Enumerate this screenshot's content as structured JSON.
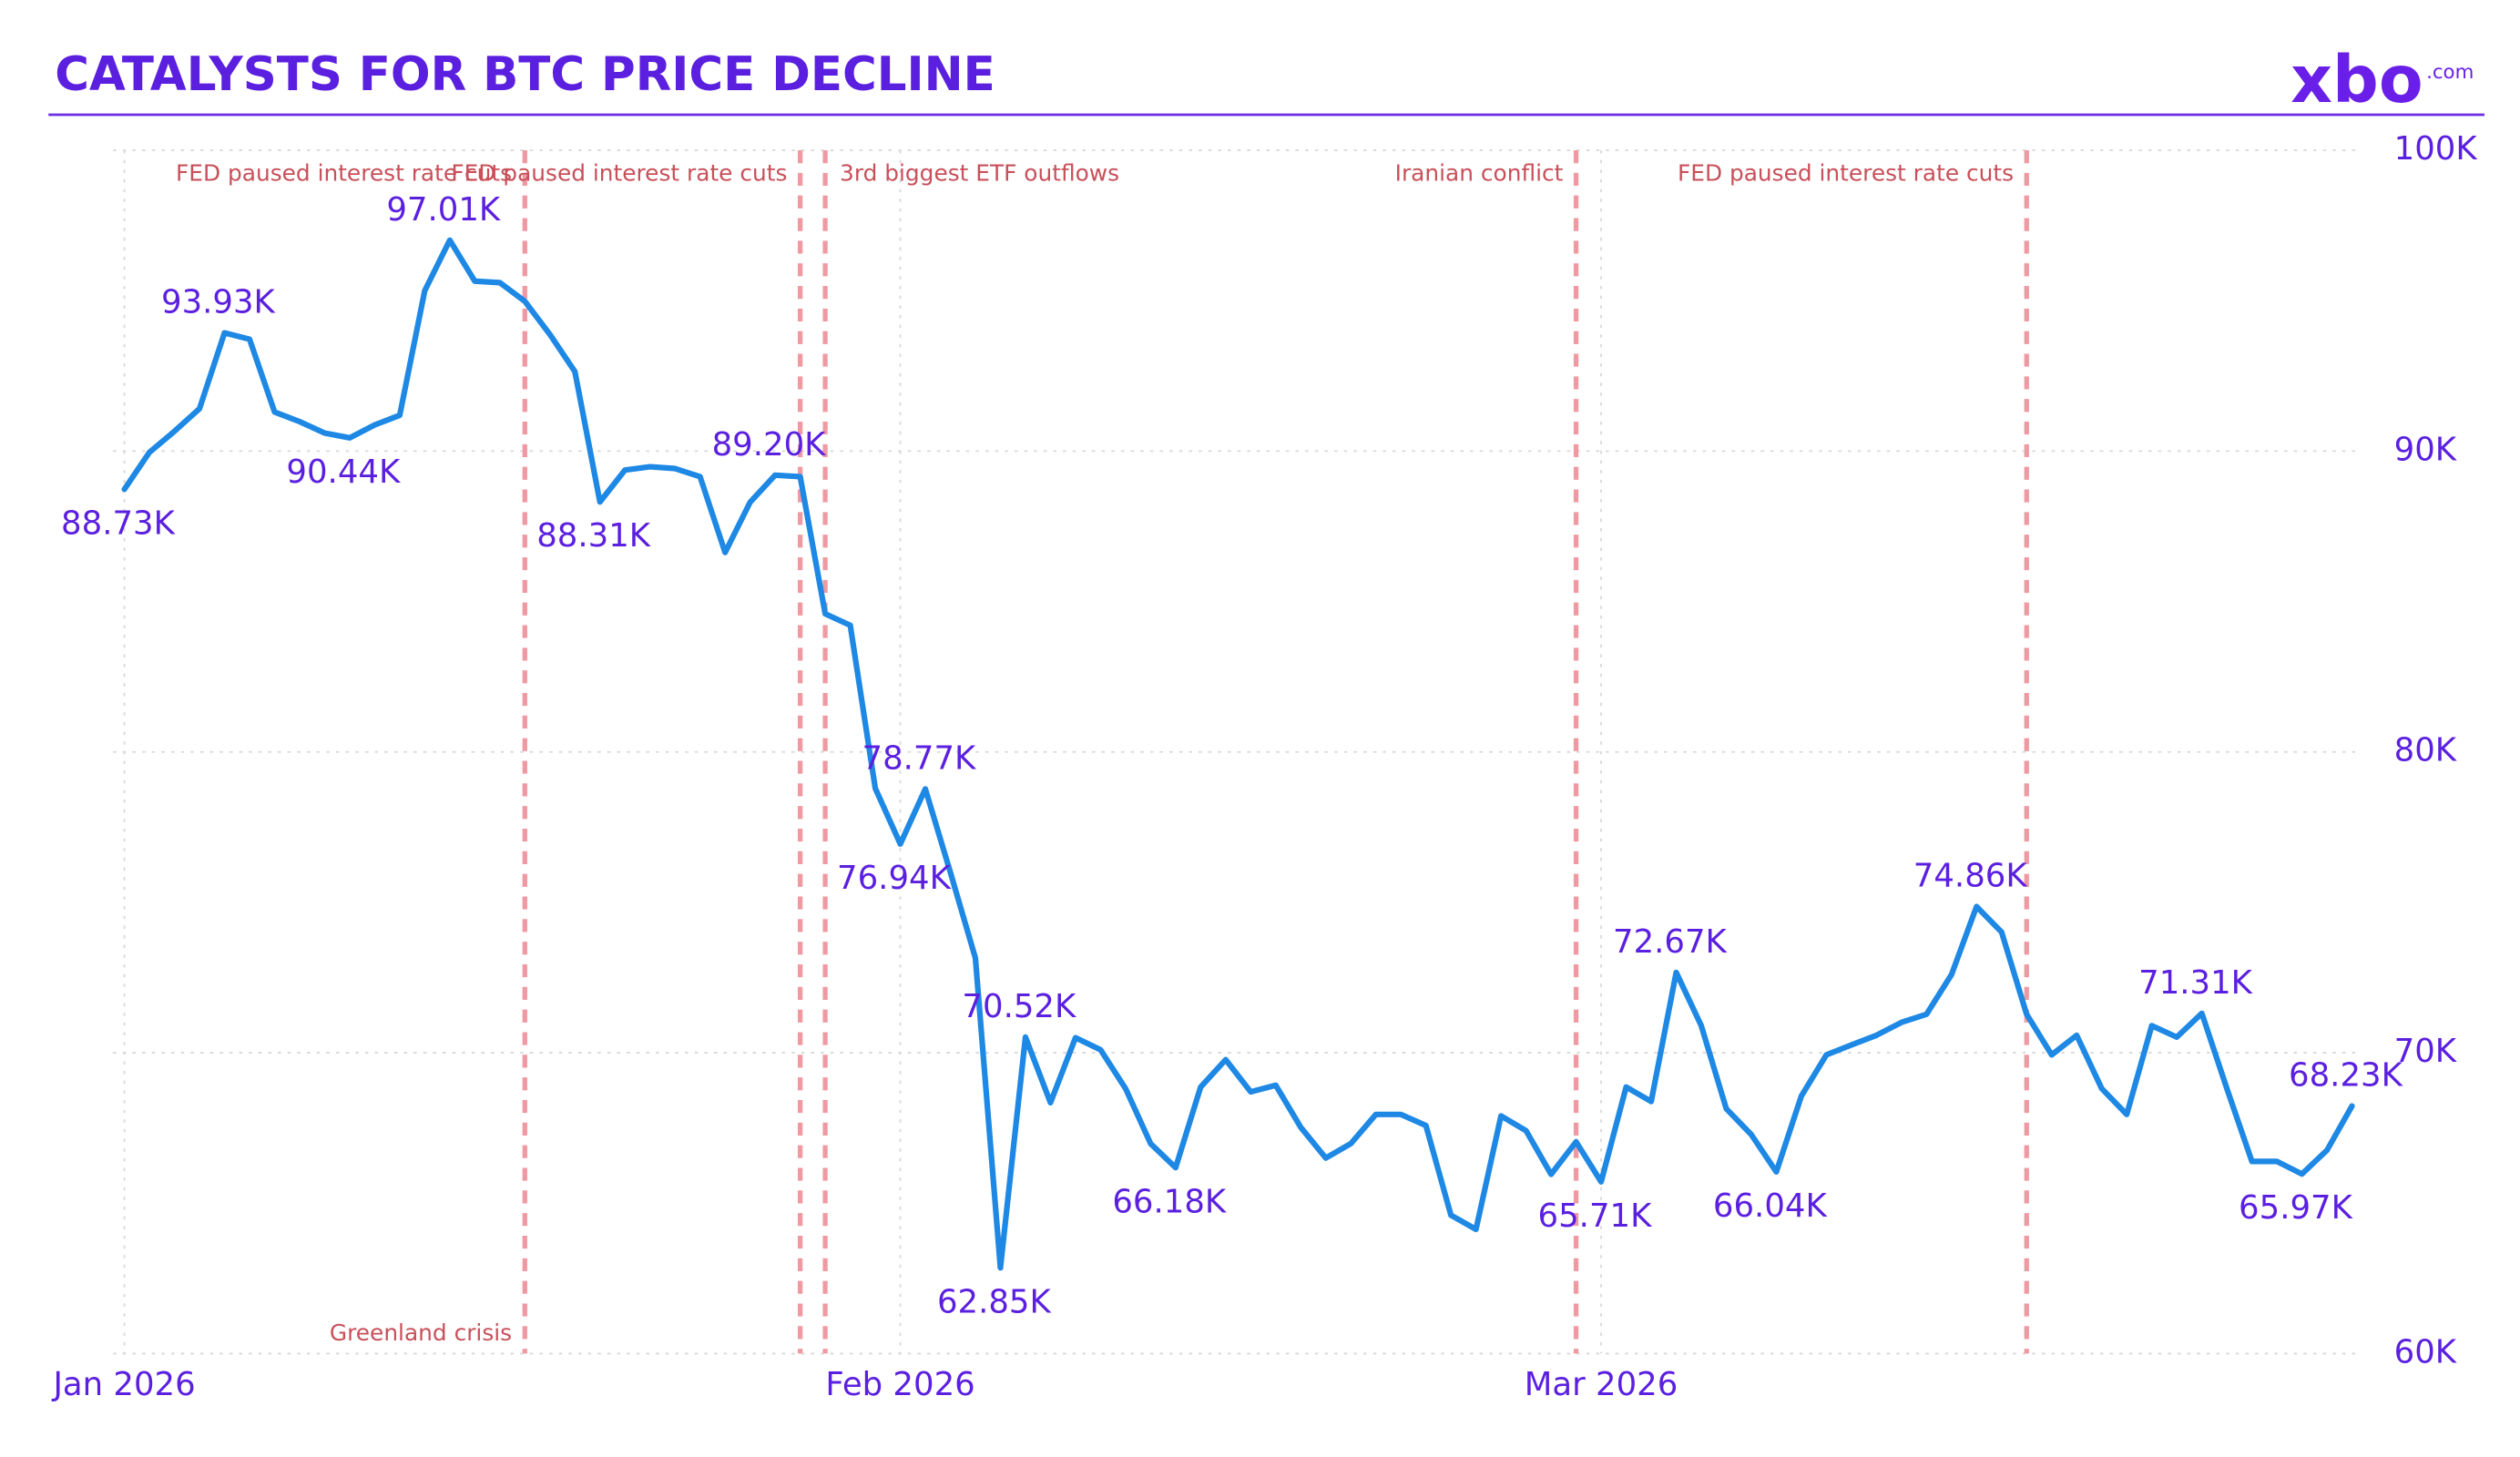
{
  "chart_data": {
    "type": "line",
    "title": "CATALYSTS FOR BTC PRICE DECLINE",
    "logo": "xbo",
    "logo_suffix": ".com",
    "color": "#1e88e5",
    "categories": [
      "Jan 2026",
      null,
      null,
      null,
      null,
      null,
      null,
      null,
      null,
      null,
      null,
      null,
      null,
      null,
      null,
      null,
      null,
      null,
      null,
      null,
      null,
      null,
      null,
      null,
      null,
      null,
      null,
      null,
      null,
      null,
      null,
      "Feb 2026",
      null,
      null,
      null,
      null,
      null,
      null,
      null,
      null,
      null,
      null,
      null,
      null,
      null,
      null,
      null,
      null,
      null,
      null,
      null,
      null,
      null,
      null,
      null,
      null,
      null,
      null,
      null,
      "Mar 2026",
      null,
      null,
      null,
      null,
      null,
      null,
      null,
      null,
      null,
      null,
      null,
      null,
      null,
      null,
      null,
      null,
      null,
      null,
      null,
      null,
      null,
      null,
      null,
      null,
      null,
      null,
      null,
      null,
      null,
      null
    ],
    "values": [
      88.73,
      89.96,
      90.66,
      91.41,
      93.93,
      93.72,
      91.3,
      90.98,
      90.6,
      90.44,
      90.87,
      91.19,
      95.33,
      97.01,
      95.65,
      95.6,
      94.98,
      93.88,
      92.64,
      88.31,
      89.37,
      89.48,
      89.42,
      89.15,
      86.63,
      88.3,
      89.2,
      89.15,
      84.59,
      84.21,
      78.79,
      76.94,
      78.77,
      76.0,
      73.15,
      62.85,
      70.52,
      68.34,
      70.5,
      70.1,
      68.81,
      66.98,
      66.18,
      68.86,
      69.77,
      68.7,
      68.92,
      67.52,
      66.5,
      66.98,
      67.95,
      67.95,
      67.58,
      64.6,
      64.13,
      67.9,
      67.41,
      65.96,
      67.04,
      65.71,
      68.86,
      68.38,
      72.67,
      70.9,
      68.14,
      67.28,
      66.04,
      68.56,
      69.93,
      70.26,
      70.58,
      71.01,
      71.28,
      72.6,
      74.86,
      74.01,
      71.28,
      69.93,
      70.58,
      68.81,
      67.95,
      70.9,
      70.52,
      71.31,
      68.81,
      66.39,
      66.39,
      65.97,
      66.76,
      68.23
    ],
    "value_labels": [
      "88.73K",
      null,
      null,
      null,
      "93.93K",
      null,
      null,
      null,
      null,
      "90.44K",
      null,
      null,
      null,
      "97.01K",
      null,
      null,
      null,
      null,
      null,
      "88.31K",
      null,
      null,
      null,
      null,
      null,
      null,
      "89.20K",
      null,
      null,
      null,
      null,
      "76.94K",
      "78.77K",
      null,
      null,
      "62.85K",
      "70.52K",
      null,
      null,
      null,
      null,
      null,
      "66.18K",
      null,
      null,
      null,
      null,
      null,
      null,
      null,
      null,
      null,
      null,
      null,
      null,
      null,
      null,
      null,
      null,
      "65.71K",
      null,
      null,
      "72.67K",
      null,
      null,
      null,
      "66.04K",
      null,
      null,
      null,
      null,
      null,
      null,
      null,
      "74.86K",
      null,
      null,
      null,
      null,
      null,
      null,
      null,
      null,
      "71.31K",
      null,
      null,
      null,
      "65.97K",
      null,
      "68.23K"
    ],
    "ylim": [
      60,
      100
    ],
    "yticks": [
      {
        "value": 60,
        "label": "60K"
      },
      {
        "value": 70,
        "label": "70K"
      },
      {
        "value": 80,
        "label": "80K"
      },
      {
        "value": 90,
        "label": "90K"
      },
      {
        "value": 100,
        "label": "100K"
      }
    ],
    "grid": true,
    "annotations": [
      {
        "text": "Greenland crisis",
        "x": 16
      },
      {
        "text": "FED paused interest rate cuts",
        "x": 16
      },
      {
        "text": "FED paused interest rate cuts",
        "x": 27
      },
      {
        "text": "3rd biggest ETF outflows",
        "x": 28
      },
      {
        "text": "Iranian conflict",
        "x": 58
      },
      {
        "text": "FED paused interest rate cuts",
        "x": 76
      }
    ]
  }
}
